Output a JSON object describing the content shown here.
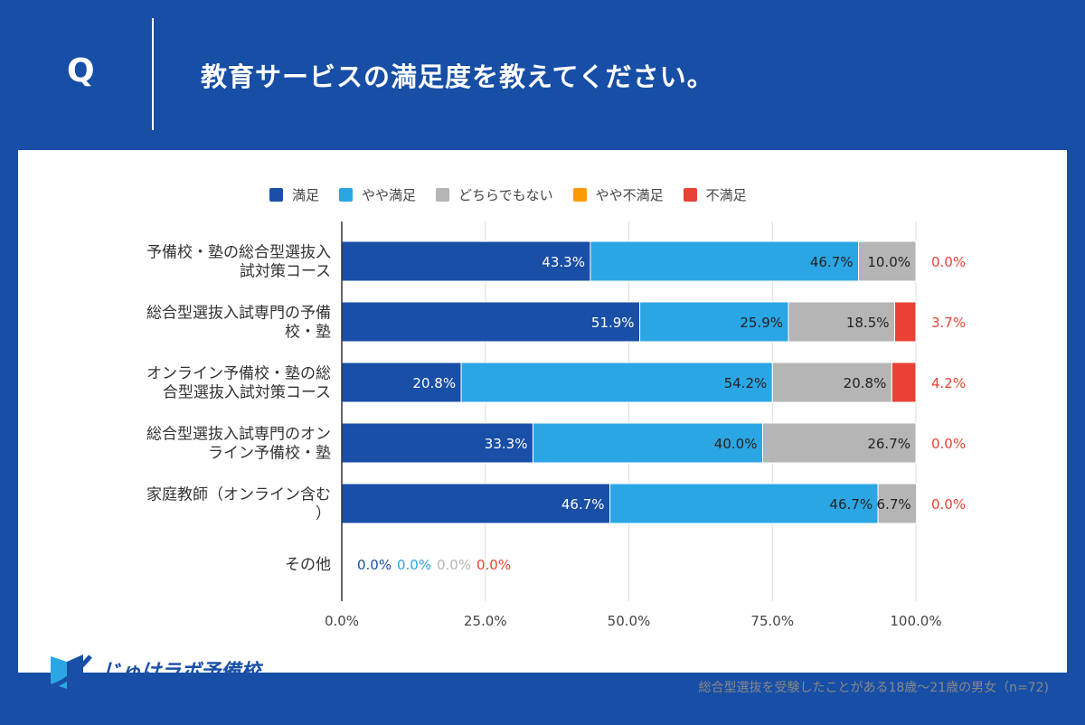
{
  "header": {
    "q_label": "Q",
    "title": "教育サービスの満足度を教えてください。"
  },
  "footer": {
    "logo_text": "じゅけラボ予備校",
    "note": "総合型選抜を受験したことがある18歳～21歳の男女（n=72)"
  },
  "chart_data": {
    "type": "bar",
    "orientation": "horizontal",
    "stacked": true,
    "categories": [
      "予備校・塾の総合型選抜入試対策コース",
      "総合型選抜入試専門の予備校・塾",
      "オンライン予備校・塾の総合型選抜入試対策コース",
      "総合型選抜入試専門のオンライン予備校・塾",
      "家庭教師（オンライン含む）",
      "その他"
    ],
    "series": [
      {
        "name": "満足",
        "color": "#1a4fa8",
        "values": [
          43.3,
          51.9,
          20.8,
          33.3,
          46.7,
          0.0
        ]
      },
      {
        "name": "やや満足",
        "color": "#2ba6e4",
        "values": [
          46.7,
          25.9,
          54.2,
          40.0,
          46.7,
          0.0
        ]
      },
      {
        "name": "どちらでもない",
        "color": "#b5b5b5",
        "values": [
          10.0,
          18.5,
          20.8,
          26.7,
          6.7,
          0.0
        ]
      },
      {
        "name": "やや不満足",
        "color": "#ff9a00",
        "values": [
          0,
          0,
          0,
          0,
          0,
          0
        ]
      },
      {
        "name": "不満足",
        "color": "#e94235",
        "values": [
          0.0,
          3.7,
          4.2,
          0.0,
          0.0,
          0.0
        ]
      }
    ],
    "xlim": [
      0,
      100
    ],
    "xticks": [
      "0.0%",
      "25.0%",
      "50.0%",
      "75.0%",
      "100.0%"
    ],
    "grid": true,
    "legend": "top"
  }
}
